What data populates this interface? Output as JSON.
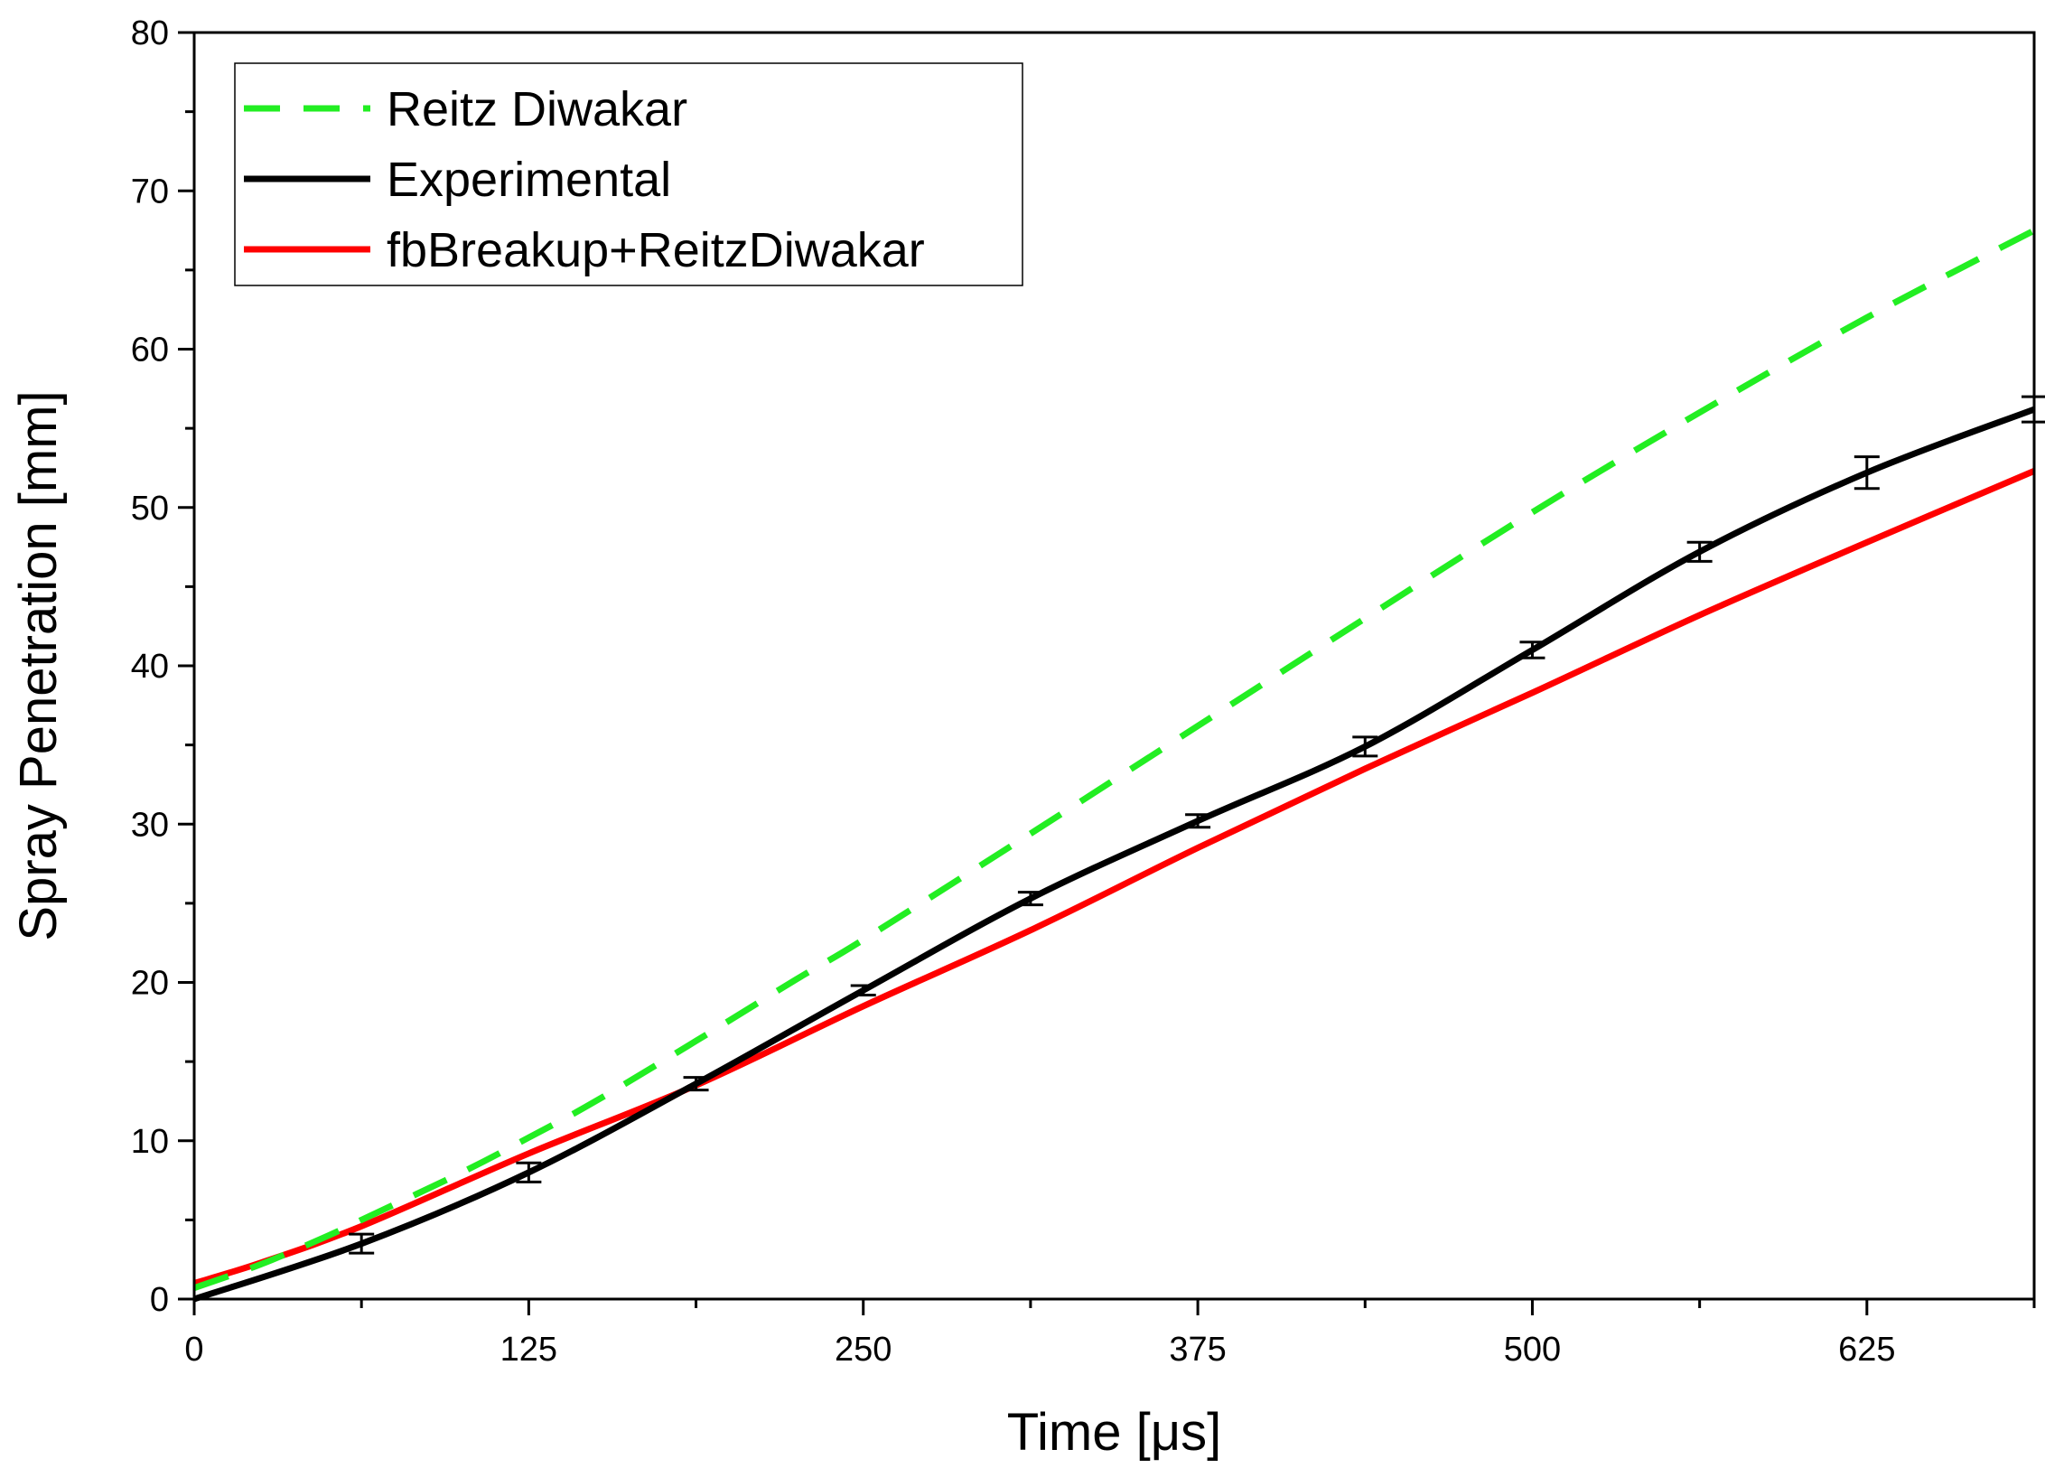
{
  "chart_data": {
    "type": "line",
    "xlabel": "Time [μs]",
    "ylabel": "Spray Penetration [mm]",
    "xlim": [
      0,
      687.5
    ],
    "ylim": [
      0,
      80
    ],
    "x_ticks": [
      0,
      125,
      250,
      375,
      500,
      625
    ],
    "y_ticks": [
      0,
      10,
      20,
      30,
      40,
      50,
      60,
      70,
      80
    ],
    "grid": false,
    "legend_position": "top-left",
    "series": [
      {
        "name": "Reitz Diwakar",
        "color": "#22ee22",
        "style": "dashed",
        "x": [
          0,
          25,
          50,
          62.5,
          100,
          125,
          150,
          187.5,
          225,
          250,
          312.5,
          375,
          437.5,
          500,
          562.5,
          625,
          687.5
        ],
        "y": [
          0.7,
          2.2,
          4.0,
          5.0,
          8.0,
          10.2,
          12.5,
          16.3,
          20.2,
          22.7,
          29.4,
          36.2,
          43.0,
          49.7,
          56.0,
          62.0,
          67.5
        ]
      },
      {
        "name": "Experimental",
        "color": "#000000",
        "style": "solid",
        "x": [
          0,
          62.5,
          125,
          187.5,
          250,
          312.5,
          375,
          437.5,
          500,
          562.5,
          625,
          687.5
        ],
        "y": [
          0,
          3.5,
          8.0,
          13.6,
          19.5,
          25.3,
          30.2,
          34.9,
          41.0,
          47.2,
          52.2,
          56.2
        ],
        "errors": [
          0,
          0.6,
          0.6,
          0.4,
          0.3,
          0.4,
          0.4,
          0.6,
          0.5,
          0.6,
          1.0,
          0.8
        ]
      },
      {
        "name": "fbBreakup+ReitzDiwakar",
        "color": "#ff0000",
        "style": "solid",
        "x": [
          0,
          25,
          62.5,
          125,
          187.5,
          250,
          312.5,
          375,
          437.5,
          500,
          562.5,
          625,
          687.5
        ],
        "y": [
          1.0,
          2.3,
          4.6,
          9.2,
          13.5,
          18.5,
          23.3,
          28.5,
          33.5,
          38.3,
          43.2,
          47.8,
          52.3
        ]
      }
    ]
  }
}
